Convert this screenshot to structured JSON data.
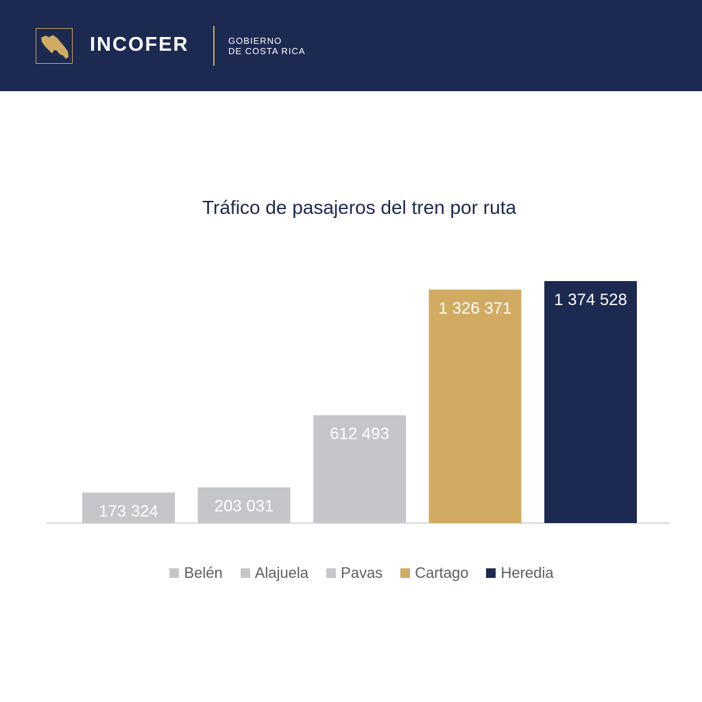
{
  "header": {
    "brand": "INCOFER",
    "gov_line1": "GOBIERNO",
    "gov_line2": "DE COSTA RICA",
    "logo_icon": "costa-rica-map-icon",
    "background_color": "#1c2951",
    "accent_color": "#c9a862"
  },
  "chart_data": {
    "type": "bar",
    "title": "Tráfico de pasajeros del tren por ruta",
    "categories": [
      "Belén",
      "Alajuela",
      "Pavas",
      "Cartago",
      "Heredia"
    ],
    "values": [
      173324,
      203031,
      612493,
      1326371,
      1374528
    ],
    "value_labels": [
      "173 324",
      "203 031",
      "612 493",
      "1 326 371",
      "1 374 528"
    ],
    "colors": [
      "#c4c6c9",
      "#c4c6c9",
      "#c4c6c9",
      "#d2ab62",
      "#1c2951"
    ],
    "ylim": [
      0,
      1374528
    ],
    "grid": false,
    "legend_position": "bottom",
    "xlabel": "",
    "ylabel": ""
  }
}
